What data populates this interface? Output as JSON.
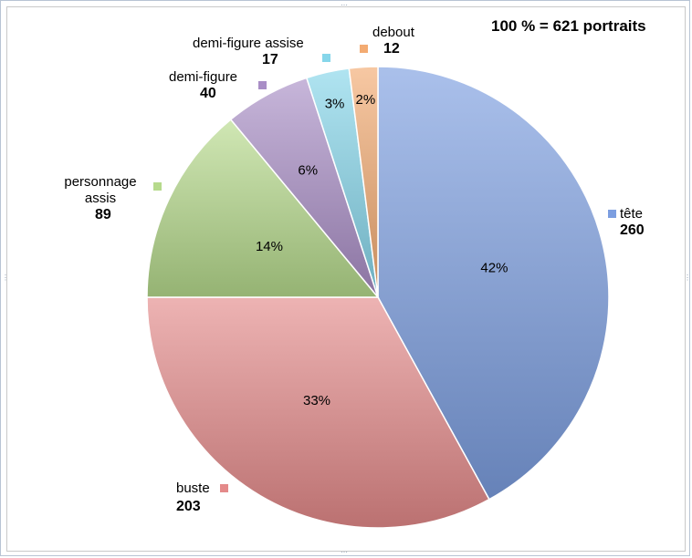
{
  "chart_data": {
    "type": "pie",
    "annotation": "100 % = 621 portraits",
    "slices": [
      {
        "name": "tête",
        "count": "260",
        "pct": 42,
        "pct_label": "42%",
        "color": "#7c9ee0"
      },
      {
        "name": "buste",
        "count": "203",
        "pct": 33,
        "pct_label": "33%",
        "color": "#e48a8a"
      },
      {
        "name": "personnage assis",
        "count": "89",
        "pct": 14,
        "pct_label": "14%",
        "color": "#b6da8c"
      },
      {
        "name": "demi-figure",
        "count": "40",
        "pct": 6,
        "pct_label": "6%",
        "color": "#a98ec6"
      },
      {
        "name": "demi-figure assise",
        "count": "17",
        "pct": 3,
        "pct_label": "3%",
        "color": "#86d6ea"
      },
      {
        "name": "debout",
        "count": "12",
        "pct": 2,
        "pct_label": "2%",
        "color": "#f3ab72"
      }
    ]
  }
}
